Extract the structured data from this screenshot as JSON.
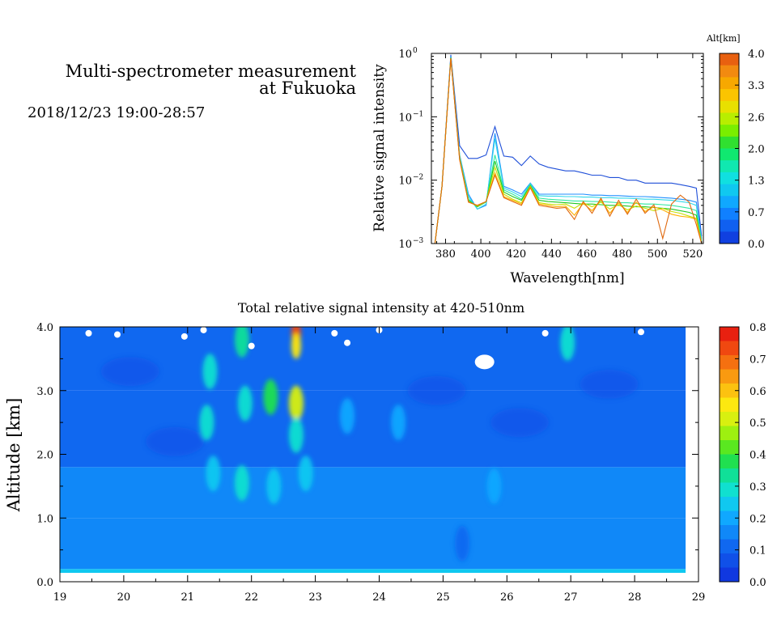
{
  "header": {
    "title_line1": "Multi-spectrometer measurement",
    "title_line2": "at Fukuoka",
    "date_range": "2018/12/23 19:00-28:57"
  },
  "chart_data": [
    {
      "type": "line",
      "xlabel": "Wavelength[nm]",
      "ylabel": "Relative signal intensity",
      "yscale": "log",
      "xlim": [
        372,
        526
      ],
      "ylim": [
        0.001,
        1
      ],
      "x_ticks": [
        "380",
        "400",
        "420",
        "440",
        "460",
        "480",
        "500",
        "520"
      ],
      "y_ticks": [
        {
          "base": "10",
          "exp": "0"
        },
        {
          "base": "10",
          "exp": "−1"
        },
        {
          "base": "10",
          "exp": "−2"
        },
        {
          "base": "10",
          "exp": "−3"
        }
      ],
      "x": [
        374,
        378,
        383,
        388,
        393,
        398,
        403,
        408,
        413,
        418,
        423,
        428,
        433,
        438,
        443,
        448,
        453,
        458,
        463,
        468,
        473,
        478,
        483,
        488,
        493,
        498,
        503,
        508,
        513,
        518,
        522,
        525
      ],
      "series": [
        {
          "altitude_km": 0.0,
          "color": "#1f4fd8",
          "values": [
            0.001,
            0.008,
            0.95,
            0.035,
            0.022,
            0.022,
            0.025,
            0.07,
            0.024,
            0.023,
            0.017,
            0.024,
            0.018,
            0.016,
            0.015,
            0.014,
            0.014,
            0.013,
            0.012,
            0.012,
            0.011,
            0.011,
            0.01,
            0.01,
            0.009,
            0.009,
            0.009,
            0.009,
            0.0085,
            0.008,
            0.0075,
            0.0013
          ]
        },
        {
          "altitude_km": 0.5,
          "color": "#1f8fff",
          "values": [
            0.001,
            0.008,
            0.9,
            0.025,
            0.006,
            0.0035,
            0.004,
            0.055,
            0.008,
            0.007,
            0.006,
            0.009,
            0.006,
            0.006,
            0.006,
            0.006,
            0.006,
            0.006,
            0.0058,
            0.0058,
            0.0057,
            0.0057,
            0.0056,
            0.0055,
            0.0055,
            0.0054,
            0.0053,
            0.0052,
            0.005,
            0.0048,
            0.0045,
            0.0012
          ]
        },
        {
          "altitude_km": 1.0,
          "color": "#30d8e8",
          "values": [
            0.001,
            0.008,
            0.88,
            0.024,
            0.0055,
            0.0035,
            0.0042,
            0.045,
            0.0075,
            0.0065,
            0.0055,
            0.0088,
            0.0057,
            0.0056,
            0.0056,
            0.0055,
            0.0055,
            0.0054,
            0.0054,
            0.0053,
            0.0053,
            0.0052,
            0.0052,
            0.0051,
            0.005,
            0.005,
            0.0049,
            0.0048,
            0.0046,
            0.0044,
            0.004,
            0.0011
          ]
        },
        {
          "altitude_km": 1.5,
          "color": "#30e8a0",
          "values": [
            0.001,
            0.008,
            0.86,
            0.023,
            0.005,
            0.0038,
            0.0045,
            0.025,
            0.007,
            0.006,
            0.005,
            0.0085,
            0.0052,
            0.005,
            0.0049,
            0.0048,
            0.0047,
            0.0047,
            0.0046,
            0.0046,
            0.0045,
            0.0044,
            0.0044,
            0.0043,
            0.0042,
            0.0042,
            0.0041,
            0.004,
            0.0038,
            0.0036,
            0.0033,
            0.0011
          ]
        },
        {
          "altitude_km": 2.0,
          "color": "#20c820",
          "values": [
            0.001,
            0.008,
            0.85,
            0.022,
            0.0048,
            0.0038,
            0.0046,
            0.02,
            0.0065,
            0.0055,
            0.0048,
            0.0082,
            0.0048,
            0.0046,
            0.0045,
            0.0044,
            0.0043,
            0.0042,
            0.0042,
            0.0041,
            0.004,
            0.004,
            0.0039,
            0.0038,
            0.0038,
            0.0037,
            0.0036,
            0.0035,
            0.0033,
            0.0031,
            0.0028,
            0.001
          ]
        },
        {
          "altitude_km": 2.6,
          "color": "#c8e000",
          "values": [
            0.001,
            0.008,
            0.84,
            0.022,
            0.0046,
            0.0039,
            0.0046,
            0.016,
            0.006,
            0.005,
            0.0044,
            0.008,
            0.0044,
            0.0042,
            0.0041,
            0.0042,
            0.0036,
            0.0044,
            0.0038,
            0.0045,
            0.0035,
            0.0041,
            0.0034,
            0.0039,
            0.0036,
            0.0033,
            0.0036,
            0.0032,
            0.003,
            0.0027,
            0.0025,
            0.001
          ]
        },
        {
          "altitude_km": 3.3,
          "color": "#ffb000",
          "values": [
            0.001,
            0.008,
            0.84,
            0.021,
            0.0045,
            0.004,
            0.0046,
            0.013,
            0.0055,
            0.0048,
            0.0042,
            0.0078,
            0.0042,
            0.004,
            0.0038,
            0.0039,
            0.0028,
            0.0043,
            0.0033,
            0.0049,
            0.003,
            0.0044,
            0.0031,
            0.0045,
            0.0032,
            0.0038,
            0.0034,
            0.0029,
            0.0027,
            0.0026,
            0.0024,
            0.001
          ]
        },
        {
          "altitude_km": 4.0,
          "color": "#e06a10",
          "values": [
            0.001,
            0.008,
            0.84,
            0.021,
            0.0045,
            0.004,
            0.0046,
            0.012,
            0.0053,
            0.0046,
            0.004,
            0.0076,
            0.004,
            0.0038,
            0.0036,
            0.0037,
            0.0024,
            0.0046,
            0.003,
            0.0052,
            0.0027,
            0.0048,
            0.0029,
            0.005,
            0.003,
            0.0041,
            0.0012,
            0.0042,
            0.0058,
            0.0045,
            0.002,
            0.001
          ]
        }
      ],
      "colorbar": {
        "label": "Alt[km]",
        "ticks": [
          "4.0",
          "3.3",
          "2.6",
          "2.0",
          "1.3",
          "0.7",
          "0.0"
        ],
        "colors": [
          "#e86010",
          "#f28a10",
          "#f7a800",
          "#fbc400",
          "#e8e000",
          "#b8ee00",
          "#7aee00",
          "#30e030",
          "#10e870",
          "#10e8b0",
          "#10e0e0",
          "#10c8f0",
          "#10a8ff",
          "#1080ff",
          "#1060f0",
          "#1040e0"
        ]
      }
    },
    {
      "type": "heatmap",
      "title": "Total relative signal intensity at 420-510nm",
      "xlabel": "",
      "ylabel": "Altitude [km]",
      "xlim": [
        19,
        29
      ],
      "ylim": [
        0.0,
        4.0
      ],
      "data_x_end": 28.8,
      "x_ticks": [
        "19",
        "20",
        "21",
        "22",
        "23",
        "24",
        "25",
        "26",
        "27",
        "28",
        "29"
      ],
      "y_ticks": [
        "0.0",
        "1.0",
        "2.0",
        "3.0",
        "4.0"
      ],
      "layers": [
        {
          "alt_from": 0.0,
          "alt_to": 0.13,
          "value": null
        },
        {
          "alt_from": 0.13,
          "alt_to": 0.2,
          "value": 0.26
        },
        {
          "alt_from": 0.2,
          "alt_to": 1.0,
          "value": 0.15
        },
        {
          "alt_from": 1.0,
          "alt_to": 1.8,
          "value": 0.17
        },
        {
          "alt_from": 1.8,
          "alt_to": 3.0,
          "value": 0.11
        },
        {
          "alt_from": 3.0,
          "alt_to": 4.0,
          "value": 0.1
        }
      ],
      "features": [
        {
          "t": 21.35,
          "alt": 3.3,
          "value": 0.3
        },
        {
          "t": 21.3,
          "alt": 2.5,
          "value": 0.28
        },
        {
          "t": 21.4,
          "alt": 1.7,
          "value": 0.25
        },
        {
          "t": 21.85,
          "alt": 3.8,
          "value": 0.32
        },
        {
          "t": 21.9,
          "alt": 2.8,
          "value": 0.3
        },
        {
          "t": 21.85,
          "alt": 1.55,
          "value": 0.3
        },
        {
          "t": 22.3,
          "alt": 2.9,
          "value": 0.38
        },
        {
          "t": 22.35,
          "alt": 1.5,
          "value": 0.26
        },
        {
          "t": 22.7,
          "alt": 3.9,
          "value": 0.75
        },
        {
          "t": 22.7,
          "alt": 3.7,
          "value": 0.55
        },
        {
          "t": 22.7,
          "alt": 2.8,
          "value": 0.5
        },
        {
          "t": 22.7,
          "alt": 2.3,
          "value": 0.3
        },
        {
          "t": 22.85,
          "alt": 1.7,
          "value": 0.24
        },
        {
          "t": 23.5,
          "alt": 2.6,
          "value": 0.2
        },
        {
          "t": 24.3,
          "alt": 2.5,
          "value": 0.19
        },
        {
          "t": 26.95,
          "alt": 3.75,
          "value": 0.3
        },
        {
          "t": 25.8,
          "alt": 1.5,
          "value": 0.19
        },
        {
          "t": 25.3,
          "alt": 0.6,
          "value": 0.12
        }
      ],
      "colorbar": {
        "ticks": [
          "0.8",
          "0.7",
          "0.6",
          "0.5",
          "0.4",
          "0.3",
          "0.2",
          "0.1",
          "0.0"
        ],
        "colors": [
          "#e82010",
          "#f04810",
          "#f57010",
          "#f99a10",
          "#fcc210",
          "#fce810",
          "#d8f010",
          "#9ef010",
          "#5ae820",
          "#20e050",
          "#10e098",
          "#10e0d0",
          "#10c8f0",
          "#10a8ff",
          "#1088f8",
          "#1068f0",
          "#1050e8",
          "#1038e0"
        ]
      }
    }
  ]
}
